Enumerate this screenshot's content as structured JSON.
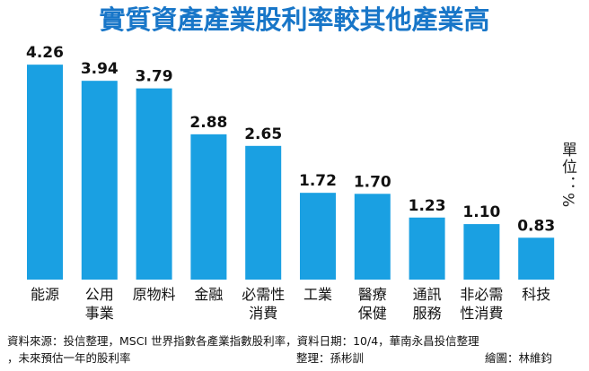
{
  "chart_data": {
    "type": "bar",
    "title": "實質資產產業股利率較其他產業高",
    "unit": "單位：%",
    "categories": [
      "能源",
      "公用\n事業",
      "原物料",
      "金融",
      "必需性\n消費",
      "工業",
      "醫療\n保健",
      "通訊\n服務",
      "非必需\n性消費",
      "科技"
    ],
    "values": [
      4.26,
      3.94,
      3.79,
      2.88,
      2.65,
      1.72,
      1.7,
      1.23,
      1.1,
      0.83
    ],
    "value_labels": [
      "4.26",
      "3.94",
      "3.79",
      "2.88",
      "2.65",
      "1.72",
      "1.70",
      "1.23",
      "1.10",
      "0.83"
    ],
    "color": "#1aa0e2",
    "source": "資料來源：投信整理，MSCI 世界指數各產業指數股利率，資料日期：10/4，華南永昌投信整理",
    "source_cont": "，未來預估一年的股利率",
    "editor": "整理：孫彬訓",
    "artist": "繪圖：林維鈞"
  }
}
